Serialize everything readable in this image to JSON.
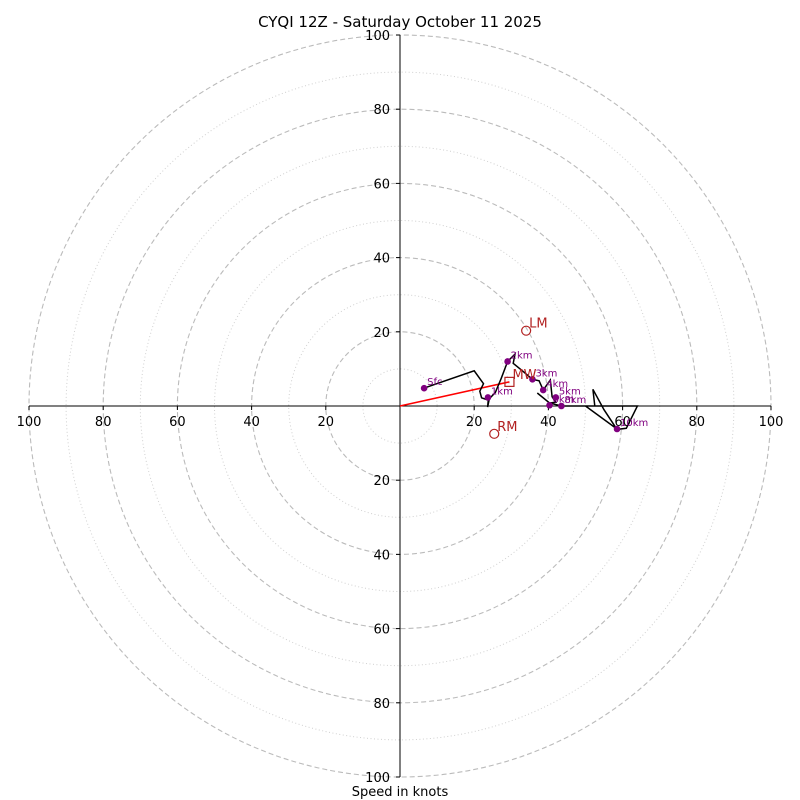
{
  "chart_data": {
    "type": "hodograph",
    "title": "CYQI 12Z - Saturday October 11 2025",
    "xlabel": "Speed in knots",
    "range": [
      -100,
      100
    ],
    "ring_major": [
      20,
      40,
      60,
      80,
      100
    ],
    "ring_minor": [
      10,
      30,
      50,
      70,
      90
    ],
    "x_ticks": [
      {
        "v": -100,
        "label": "100"
      },
      {
        "v": -80,
        "label": "80"
      },
      {
        "v": -60,
        "label": "60"
      },
      {
        "v": -40,
        "label": "40"
      },
      {
        "v": -20,
        "label": "20"
      },
      {
        "v": 20,
        "label": "20"
      },
      {
        "v": 40,
        "label": "40"
      },
      {
        "v": 60,
        "label": "60"
      },
      {
        "v": 80,
        "label": "80"
      },
      {
        "v": 100,
        "label": "100"
      }
    ],
    "y_ticks": [
      {
        "v": 100,
        "label": "100"
      },
      {
        "v": 80,
        "label": "80"
      },
      {
        "v": 60,
        "label": "60"
      },
      {
        "v": 40,
        "label": "40"
      },
      {
        "v": 20,
        "label": "20"
      },
      {
        "v": -20,
        "label": "20"
      },
      {
        "v": -40,
        "label": "40"
      },
      {
        "v": -60,
        "label": "60"
      },
      {
        "v": -80,
        "label": "80"
      },
      {
        "v": -100,
        "label": "100"
      }
    ],
    "profile": [
      [
        7,
        5
      ],
      [
        20,
        9.5
      ],
      [
        22.5,
        6
      ],
      [
        21.5,
        4
      ],
      [
        22,
        2.2
      ],
      [
        24,
        1.5
      ],
      [
        23.6,
        -0.3
      ],
      [
        23.8,
        1.7
      ],
      [
        25.7,
        3.6
      ],
      [
        27.3,
        7.5
      ],
      [
        29,
        12
      ],
      [
        31,
        14
      ],
      [
        30.5,
        11.5
      ],
      [
        33,
        9.5
      ],
      [
        35.7,
        7.2
      ],
      [
        37.5,
        6.8
      ],
      [
        38.6,
        4.3
      ],
      [
        40.5,
        7
      ],
      [
        41,
        2.5
      ],
      [
        42,
        1
      ],
      [
        40.3,
        0.8
      ],
      [
        37,
        3.5
      ],
      [
        40.3,
        0.8
      ],
      [
        43.5,
        0
      ],
      [
        52.5,
        0
      ],
      [
        52,
        4.5
      ],
      [
        55,
        -1
      ],
      [
        58.5,
        -6.3
      ],
      [
        61,
        -6
      ],
      [
        64,
        0
      ],
      [
        50,
        0
      ],
      [
        58.5,
        -6.2
      ]
    ],
    "height_points": [
      {
        "label": "Sfc",
        "u": 6.5,
        "v": 4.8
      },
      {
        "label": "1km",
        "u": 23.7,
        "v": 2.3
      },
      {
        "label": "2km",
        "u": 29,
        "v": 12
      },
      {
        "label": "3km",
        "u": 35.7,
        "v": 7.2
      },
      {
        "label": "4km",
        "u": 38.6,
        "v": 4.3
      },
      {
        "label": "5km",
        "u": 42,
        "v": 2.3
      },
      {
        "label": "6km",
        "u": 40.3,
        "v": 0.2
      },
      {
        "label": "8km",
        "u": 43.5,
        "v": 0
      },
      {
        "label": "10km",
        "u": 58.5,
        "v": -6.2
      }
    ],
    "storm_motion": {
      "mean_wind": {
        "label": "MW",
        "u": 29.5,
        "v": 6.5
      },
      "left_mover": {
        "label": "LM",
        "u": 34,
        "v": 20.3
      },
      "right_mover": {
        "label": "RM",
        "u": 25.4,
        "v": -7.5
      }
    },
    "colors": {
      "profile": "#000000",
      "height_point": "#800080",
      "storm_marker": "#b22222",
      "shear_vector": "#ff0000",
      "ring": "#bbbbbb",
      "axis": "#000000"
    }
  }
}
